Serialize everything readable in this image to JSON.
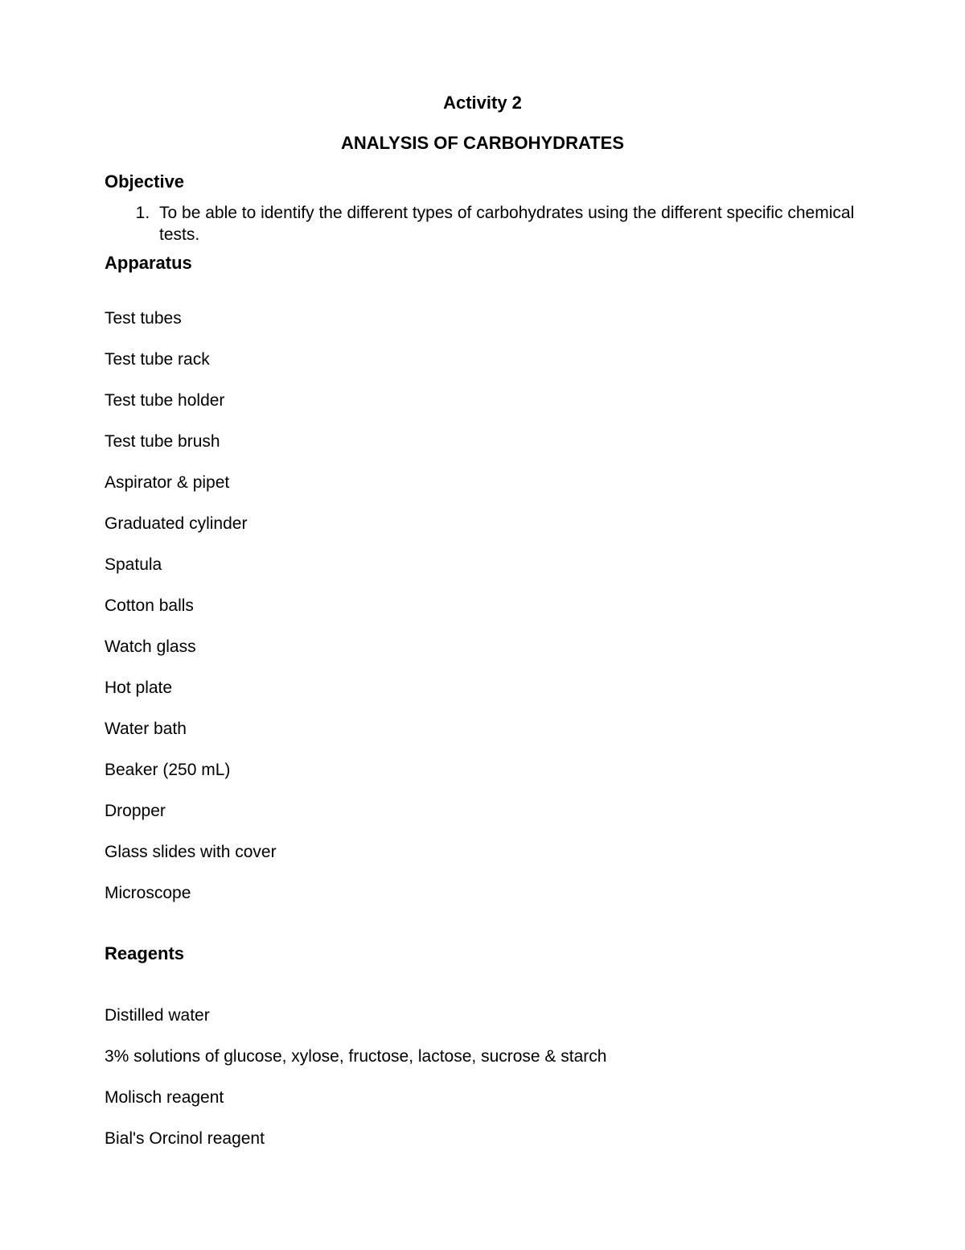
{
  "header": {
    "activity_number": "Activity 2",
    "title": "ANALYSIS OF CARBOHYDRATES"
  },
  "sections": {
    "objective": {
      "heading": "Objective",
      "items": [
        "To be able to identify the different types of carbohydrates using the different specific chemical tests."
      ]
    },
    "apparatus": {
      "heading": "Apparatus",
      "items": [
        "Test tubes",
        "Test tube rack",
        "Test tube holder",
        "Test tube brush",
        "Aspirator & pipet",
        "Graduated cylinder",
        "Spatula",
        "Cotton balls",
        "Watch glass",
        "Hot plate",
        "Water bath",
        "Beaker (250 mL)",
        "Dropper",
        "Glass slides with cover",
        "Microscope"
      ]
    },
    "reagents": {
      "heading": "Reagents",
      "items": [
        "Distilled water",
        "3% solutions of glucose, xylose, fructose, lactose, sucrose & starch",
        "Molisch reagent",
        "Bial's Orcinol reagent"
      ]
    }
  },
  "style": {
    "background_color": "#ffffff",
    "text_color": "#000000",
    "heading_fontsize": 22,
    "body_fontsize": 21,
    "font_family": "Arial"
  }
}
